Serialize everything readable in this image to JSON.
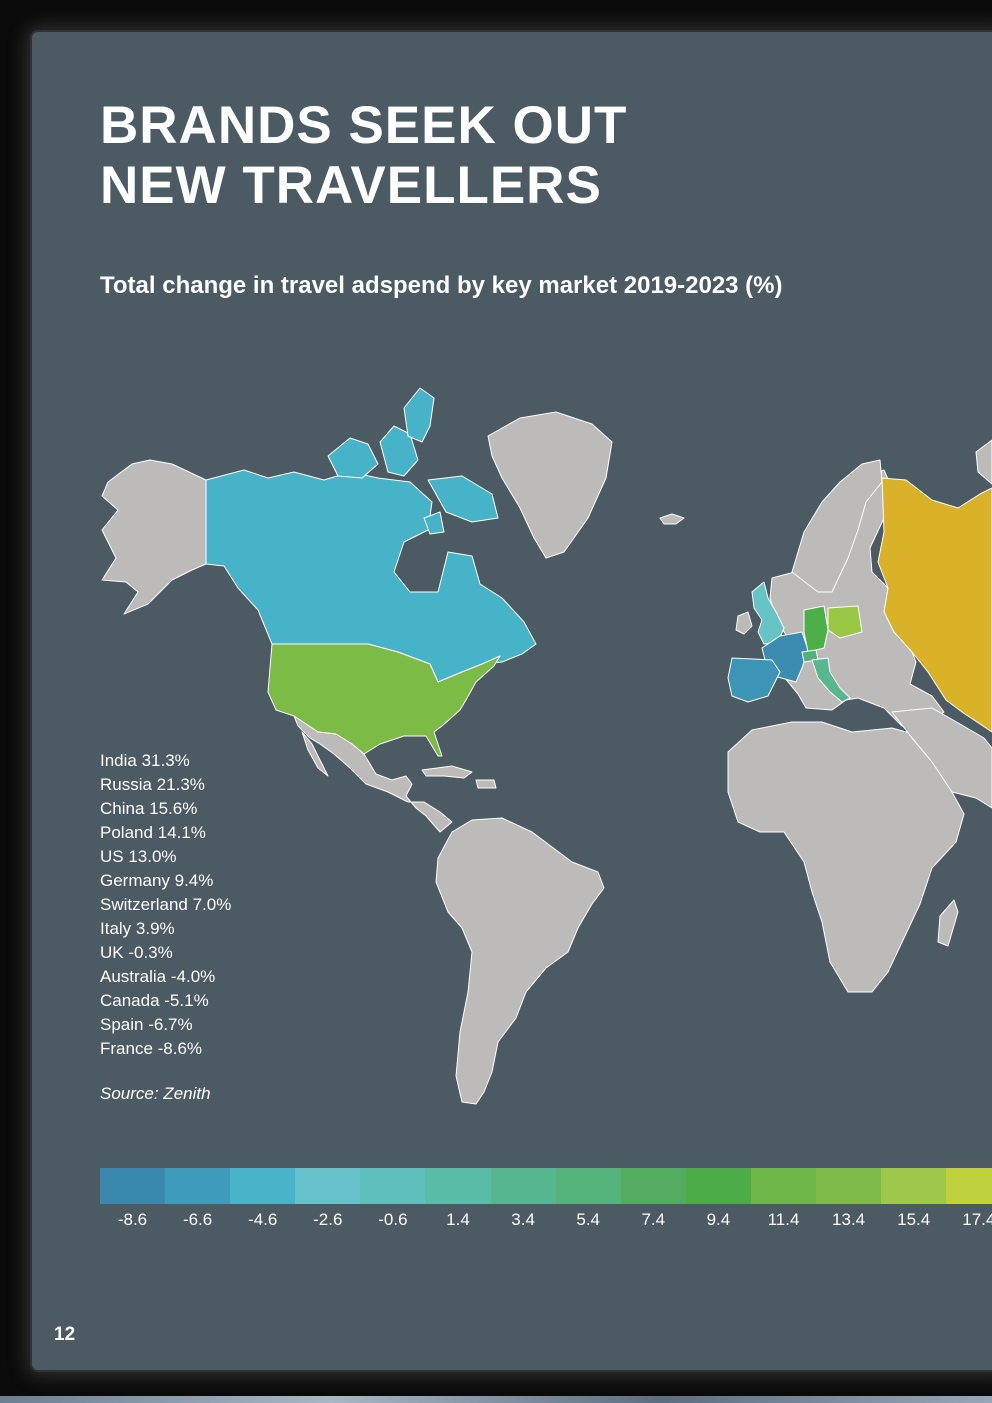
{
  "header": {
    "title_line1": "BRANDS SEEK OUT",
    "title_line2": "NEW TRAVELLERS",
    "subtitle": "Total change in travel adspend by key market 2019-2023 (%)"
  },
  "markets": [
    {
      "label": "India 31.3%",
      "country": "India",
      "value": 31.3
    },
    {
      "label": "Russia 21.3%",
      "country": "Russia",
      "value": 21.3
    },
    {
      "label": "China 15.6%",
      "country": "China",
      "value": 15.6
    },
    {
      "label": "Poland 14.1%",
      "country": "Poland",
      "value": 14.1
    },
    {
      "label": "US 13.0%",
      "country": "US",
      "value": 13.0
    },
    {
      "label": "Germany 9.4%",
      "country": "Germany",
      "value": 9.4
    },
    {
      "label": "Switzerland 7.0%",
      "country": "Switzerland",
      "value": 7.0
    },
    {
      "label": "Italy 3.9%",
      "country": "Italy",
      "value": 3.9
    },
    {
      "label": "UK -0.3%",
      "country": "UK",
      "value": -0.3
    },
    {
      "label": "Australia -4.0%",
      "country": "Australia",
      "value": -4.0
    },
    {
      "label": "Canada -5.1%",
      "country": "Canada",
      "value": -5.1
    },
    {
      "label": "Spain -6.7%",
      "country": "Spain",
      "value": -6.7
    },
    {
      "label": "France -8.6%",
      "country": "France",
      "value": -8.6
    }
  ],
  "source": "Source: Zenith",
  "color_scale": {
    "ticks": [
      "-8.6",
      "-6.6",
      "-4.6",
      "-2.6",
      "-0.6",
      "1.4",
      "3.4",
      "5.4",
      "7.4",
      "9.4",
      "11.4",
      "13.4",
      "15.4",
      "17.4"
    ],
    "colors": [
      "#3a88ae",
      "#3f9bba",
      "#49b3c9",
      "#66c3cc",
      "#5fc0bd",
      "#59bca7",
      "#56b690",
      "#54b27a",
      "#52ad5e",
      "#4cac48",
      "#6db648",
      "#7dba48",
      "#9ec847",
      "#bfd23d"
    ]
  },
  "map_colors": {
    "land": "#bdbbba",
    "border": "#ffffff",
    "canada": "#47b3c8",
    "us": "#7cbb46",
    "uk": "#66c3c6",
    "france": "#3b8cb0",
    "spain": "#3c95b6",
    "germany": "#4caf47",
    "poland": "#97c743",
    "switzerland": "#52b27a",
    "italy": "#59b68f",
    "russia": "#dab22a"
  },
  "page_number": "12"
}
